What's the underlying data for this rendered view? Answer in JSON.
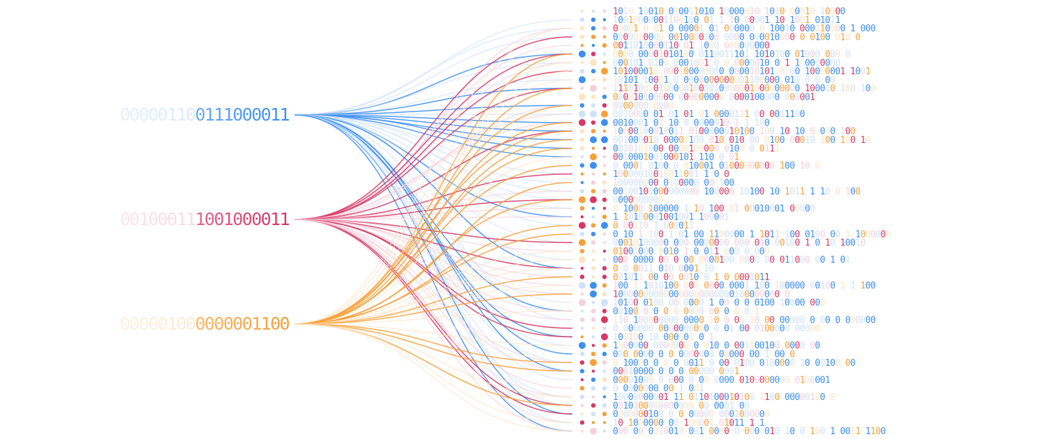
{
  "sources": [
    {
      "label": "000001100111000011",
      "color": "#3d8ff0",
      "light": "#cfe2fb"
    },
    {
      "label": "001000111001000011",
      "color": "#d63865",
      "light": "#f6cfdc"
    },
    {
      "label": "000001000000001100",
      "color": "#f7a03a",
      "light": "#fde4c4"
    }
  ],
  "rows": [
    "1010 10010  000011010 10000010 1010  00010  10000",
    "10010000001100100 01 1  10 00001 10 1001 01011",
    "00001 0    01 0 00001 01 000000  0  10010  000010000 1 000",
    "0000010000 0010000000 0000   000010000 0 0100 010 0",
    "0011010000110 01 1000 000000000",
    "0000 00001010100 0110011101 1010100 01000 000 0",
    "000101 0100 0001001 0 0 0000010 0 1  1 0000000",
    "101000010 000100000000  000010101 0 00 10000001 1001",
    "10101 10001 0 0000000000001100000 010 0 0 00",
    "1110100 01000001000010000001000000000 100010 100 100",
    "000010100000 000000000 0000100000 000001",
    "0000000 0000",
    "0010000 01 01 01 01  0000111 00  0011100",
    "0010001 01 10 0    0000010 1 1 100",
    "10000100010011 0100000010100 100 10 10 0 010 100",
    "001000010 00000100 010 010 00 0100 00010 100 100 10",
    "0010101000 0000100000 0100 0 0111",
    "0010001001000101 110  0 01",
    "0 0001 0100 0 010001 01000000000 100 10 0",
    "10000010010011001 1 0 0",
    "100000000 0100000 00 100",
    "00100100000000000 100000 10100 10 1011 1 10 0 100",
    "0000000000",
    "0 1000 100000 1 10 100 01  00010001 00000",
    "1 10100001001001 100001",
    "0 00110 1 000011",
    "0 10 1 100 1 01 00 1100000 1 1011 100 0100 00 1 1000000",
    "00010100000 000 0000000  000 010 00100 1 0 10 10010",
    "01001000 0010 1 0 011 000 0 000",
    "000 0000 00 0 00 0000100 0000 00 011000 00 1 01",
    "0 0 0011 010 0001 10",
    "001011 00 00  0010 0 1 0 0001011",
    "100 1 1010100 000 0000 0001 100 100000 00100 1 1 100",
    "100000000000000000000000100000000 0",
    "10100 0100  00    0000 1 00 0 0 0100 10000 000",
    "00100 0 0 0 0 0000 00 0 0 0 1",
    "110 100000000 0000 10 0 00 10 00 00000 0 00 0 000000",
    "0 000000 0000000000 0 01 00 0100000 00000",
    "100100 10 000001 0 1",
    "1000000 0000000 0 010   0 001100100 0000 00",
    "000  0000 0 0 0000000 00000 00 1 00 0",
    "0 10000 0 0 0 0011 0 00  0100 0100000 10 00100 00",
    "00010000 0 0 0 00000 0001",
    "00001000 0 000 0 00 0000 0100000000 0100001",
    "0 0000000 00 1 001",
    "10000000001 11 0110100010100 1100 00000100 0",
    "0010100000000000 00 0001 00",
    "0000000100 0 0 00000 0001000000",
    "10  1000000 00 100001 01011 1 1",
    "000 00 0010010 001 0000 0 000 010 10 0 100 1 0011 1100"
  ]
}
